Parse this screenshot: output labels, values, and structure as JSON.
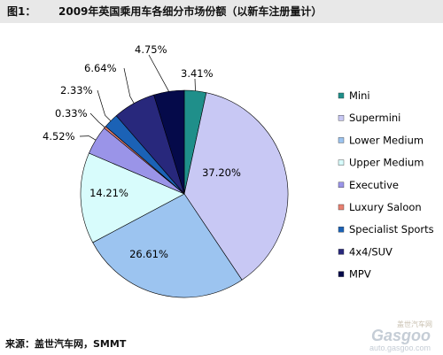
{
  "title": {
    "fig_label": "图1：",
    "text": "2009年英国乘用车各细分市场份额（以新车注册量计）"
  },
  "source": "来源：盖世汽车网，SMMT",
  "watermark": {
    "top": "盖世汽车网",
    "logo": "Gasgoo",
    "url": "auto.gasgoo.com"
  },
  "chart_data": {
    "type": "pie",
    "unit": "%",
    "legend_position": "right",
    "labels": [
      "Mini",
      "Supermini",
      "Lower Medium",
      "Upper Medium",
      "Executive",
      "Luxury Saloon",
      "Specialist Sports",
      "4x4/SUV",
      "MPV"
    ],
    "values": [
      3.41,
      37.2,
      26.61,
      14.21,
      4.52,
      0.33,
      2.33,
      6.64,
      4.75
    ],
    "data_labels": [
      "3.41%",
      "37.20%",
      "26.61%",
      "14.21%",
      "4.52%",
      "0.33%",
      "2.33%",
      "6.64%",
      "4.75%"
    ],
    "colors": [
      "#1f8f8a",
      "#c8c8f4",
      "#9cc4f0",
      "#d8fcfc",
      "#9a94e8",
      "#e98070",
      "#1b62b6",
      "#28287c",
      "#050a4a"
    ]
  }
}
